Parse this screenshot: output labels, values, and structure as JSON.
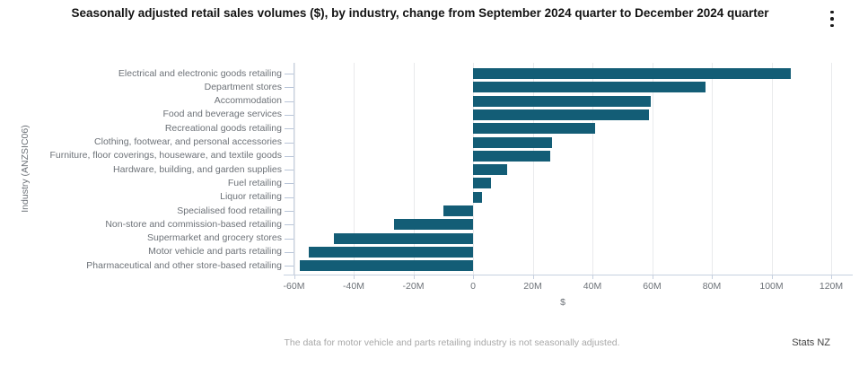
{
  "header": {
    "title": "Seasonally adjusted retail sales volumes ($), by industry, change from September 2024 quarter to December 2024 quarter",
    "menu_icon": "kebab-menu"
  },
  "chart_data": {
    "type": "bar",
    "orientation": "horizontal",
    "title": "Seasonally adjusted retail sales volumes ($), by industry, change from September 2024 quarter to December 2024 quarter",
    "xlabel": "$",
    "ylabel": "Industry (ANZSIC06)",
    "xlim": [
      -60000000,
      120000000
    ],
    "grid": true,
    "legend": false,
    "bar_color": "#135d76",
    "value_unit": "M",
    "categories": [
      "Electrical and electronic goods retailing",
      "Department stores",
      "Accommodation",
      "Food and beverage services",
      "Recreational goods retailing",
      "Clothing, footwear, and personal accessories",
      "Furniture, floor coverings, houseware, and textile goods",
      "Hardware, building, and garden supplies",
      "Fuel retailing",
      "Liquor retailing",
      "Specialised food retailing",
      "Non-store and commission-based retailing",
      "Supermarket and grocery stores",
      "Motor vehicle and parts retailing",
      "Pharmaceutical and other store-based retailing"
    ],
    "values_millions": [
      106.5,
      78,
      59.5,
      59,
      41,
      26.5,
      26,
      11.5,
      6,
      3,
      -10,
      -26.5,
      -46.5,
      -55,
      -58
    ],
    "xticks": {
      "values_millions": [
        -60,
        -40,
        -20,
        0,
        20,
        40,
        60,
        80,
        100,
        120
      ],
      "labels": [
        "-60M",
        "-40M",
        "-20M",
        "0",
        "20M",
        "40M",
        "60M",
        "80M",
        "100M",
        "120M"
      ]
    }
  },
  "footer": {
    "footnote": "The data for motor vehicle and parts retailing industry is not seasonally adjusted.",
    "attribution": "Stats NZ"
  }
}
